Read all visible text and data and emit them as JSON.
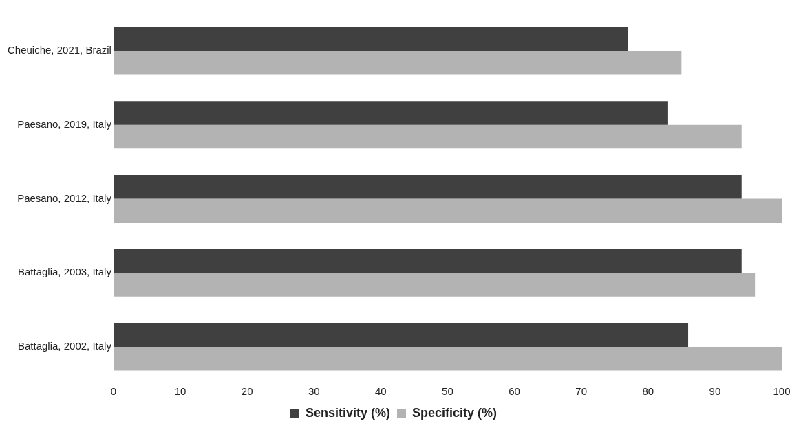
{
  "chart_data": {
    "type": "bar",
    "orientation": "horizontal",
    "categories": [
      "Cheuiche, 2021, Brazil",
      "Paesano, 2019, Italy",
      "Paesano, 2012, Italy",
      "Battaglia, 2003, Italy",
      "Battaglia, 2002, Italy"
    ],
    "series": [
      {
        "name": "Sensitivity (%)",
        "color": "#404040",
        "values": [
          77,
          83,
          94,
          94,
          86
        ]
      },
      {
        "name": "Specificity (%)",
        "color": "#b3b3b3",
        "values": [
          85,
          94,
          100,
          96,
          100
        ]
      }
    ],
    "xlim": [
      0,
      100
    ],
    "xticks": [
      0,
      10,
      20,
      30,
      40,
      50,
      60,
      70,
      80,
      90,
      100
    ],
    "grid": false,
    "legend": "bottom"
  }
}
